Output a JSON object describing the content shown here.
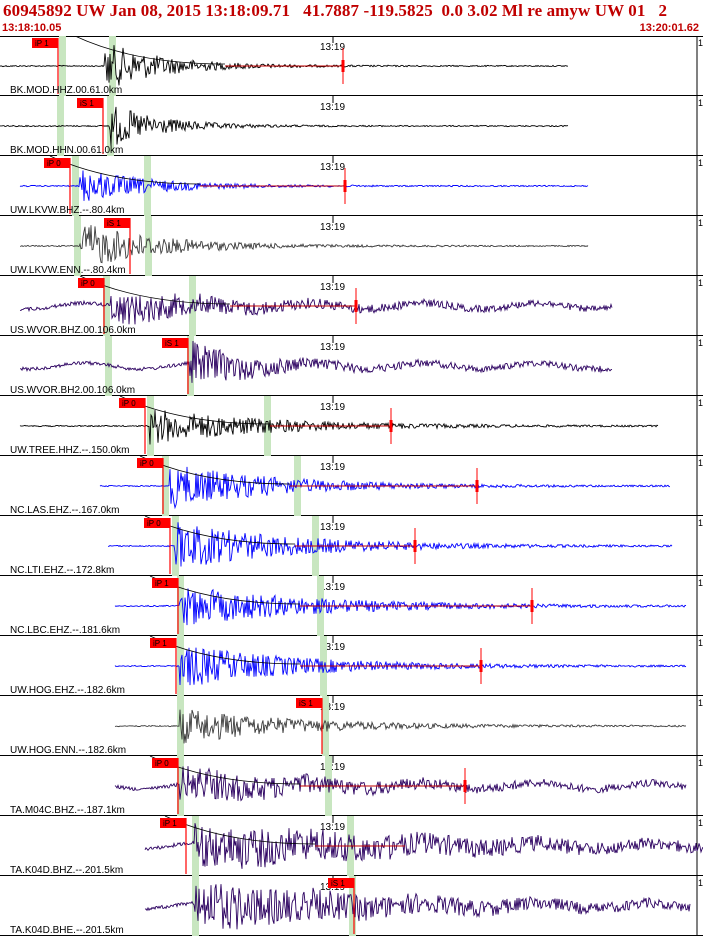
{
  "header": {
    "title": "60945892 UW Jan 08, 2015 13:18:09.71   41.7887 -119.5825  0.0 3.02 Ml re amyw UW 01   2",
    "start_time": "13:18:10.05",
    "end_time": "13:20:01.62",
    "minute_label": "13:19",
    "panel_count_label": "1"
  },
  "colors": {
    "header_text": "#c00000",
    "pick_box": "#ff0000",
    "phase_window": "#c8e6c0",
    "trace_black": "#000000",
    "trace_blue": "#0000ff",
    "trace_gray": "#3c3c3c",
    "trace_purple": "#2b0060",
    "synthetic_line": "#c00000"
  },
  "traces": [
    {
      "label": "BK.MOD.HHZ.00.61.0km",
      "pick": "iP 1",
      "color": "trace_black",
      "synthetic": true
    },
    {
      "label": "BK.MOD.HHN.00.61.0km",
      "pick": "iS 1",
      "color": "trace_black",
      "synthetic": false
    },
    {
      "label": "UW.LKVW.BHZ.--.80.4km",
      "pick": "iP 0",
      "color": "trace_blue",
      "synthetic": true
    },
    {
      "label": "UW.LKVW.ENN.--.80.4km",
      "pick": "iS 1",
      "color": "trace_gray",
      "synthetic": false
    },
    {
      "label": "US.WVOR.BHZ.00.106.0km",
      "pick": "iP 0",
      "color": "trace_purple",
      "synthetic": true
    },
    {
      "label": "US.WVOR.BH2.00.106.0km",
      "pick": "iS 1",
      "color": "trace_purple",
      "synthetic": false
    },
    {
      "label": "UW.TREE.HHZ.--.150.0km",
      "pick": "iP 0",
      "color": "trace_black",
      "synthetic": true
    },
    {
      "label": "NC.LAS.EHZ.--.167.0km",
      "pick": "iP 0",
      "color": "trace_blue",
      "synthetic": true
    },
    {
      "label": "NC.LTI.EHZ.--.172.8km",
      "pick": "iP 0",
      "color": "trace_blue",
      "synthetic": true
    },
    {
      "label": "NC.LBC.EHZ.--.181.6km",
      "pick": "iP 1",
      "color": "trace_blue",
      "synthetic": true
    },
    {
      "label": "UW.HOG.EHZ.--.182.6km",
      "pick": "iP 1",
      "color": "trace_blue",
      "synthetic": true
    },
    {
      "label": "UW.HOG.ENN.--.182.6km",
      "pick": "iS 1",
      "color": "trace_gray",
      "synthetic": false
    },
    {
      "label": "TA.M04C.BHZ.--.187.1km",
      "pick": "iP 0",
      "color": "trace_purple",
      "synthetic": true
    },
    {
      "label": "TA.K04D.BHZ.--.201.5km",
      "pick": "iP 1",
      "color": "trace_purple",
      "synthetic": true
    },
    {
      "label": "TA.K04D.BHE.--.201.5km",
      "pick": "iS 1",
      "color": "trace_purple",
      "synthetic": false
    }
  ]
}
